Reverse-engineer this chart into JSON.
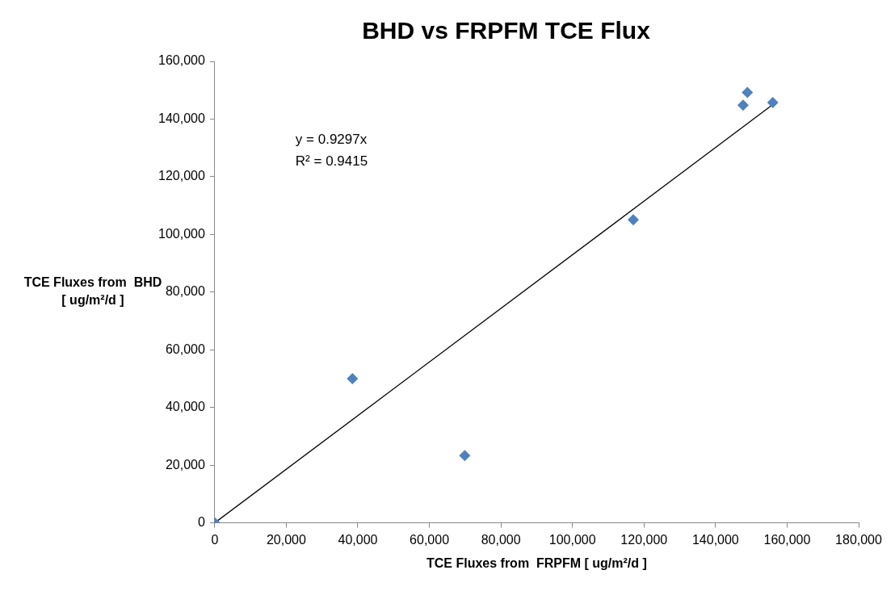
{
  "chart_data": {
    "type": "scatter",
    "title": "BHD vs FRPFM TCE Flux",
    "xlabel": "TCE Fluxes from  FRPFM [ ug/m²/d ]",
    "ylabel": "TCE Fluxes from  BHD\n[ ug/m²/d ]",
    "annotations": [
      "y = 0.9297x",
      "R² = 0.9415"
    ],
    "series": [
      {
        "type": "scatter",
        "color": "#4f81bd",
        "x": [
          0,
          38500,
          69900,
          117000,
          147700,
          148900,
          156000
        ],
        "values": [
          0,
          50000,
          23300,
          105100,
          144800,
          149200,
          145700
        ],
        "marker": "diamond"
      },
      {
        "type": "line",
        "color": "#000000",
        "x": [
          0,
          156000
        ],
        "values": [
          0,
          145000
        ],
        "marker": "none"
      }
    ],
    "xlim": [
      0,
      180000
    ],
    "xticks": [
      0,
      {
        "value": 20000,
        "label": "20,000"
      },
      {
        "value": 40000,
        "label": "40,000"
      },
      {
        "value": 60000,
        "label": "60,000"
      },
      {
        "value": 80000,
        "label": "80,000"
      },
      {
        "value": 100000,
        "label": "100,000"
      },
      {
        "value": 120000,
        "label": "120,000"
      },
      {
        "value": 140000,
        "label": "140,000"
      },
      {
        "value": 160000,
        "label": "160,000"
      },
      {
        "value": 180000,
        "label": "180,000"
      }
    ],
    "ylim": [
      0,
      160000
    ],
    "yticks": [
      0,
      {
        "value": 20000,
        "label": "20,000"
      },
      {
        "value": 40000,
        "label": "40,000"
      },
      {
        "value": 60000,
        "label": "60,000"
      },
      {
        "value": 80000,
        "label": "80,000"
      },
      {
        "value": 100000,
        "label": "100,000"
      },
      {
        "value": 120000,
        "label": "120,000"
      },
      {
        "value": 140000,
        "label": "140,000"
      },
      {
        "value": 160000,
        "label": "160,000"
      }
    ],
    "grid": false,
    "legend": false
  }
}
